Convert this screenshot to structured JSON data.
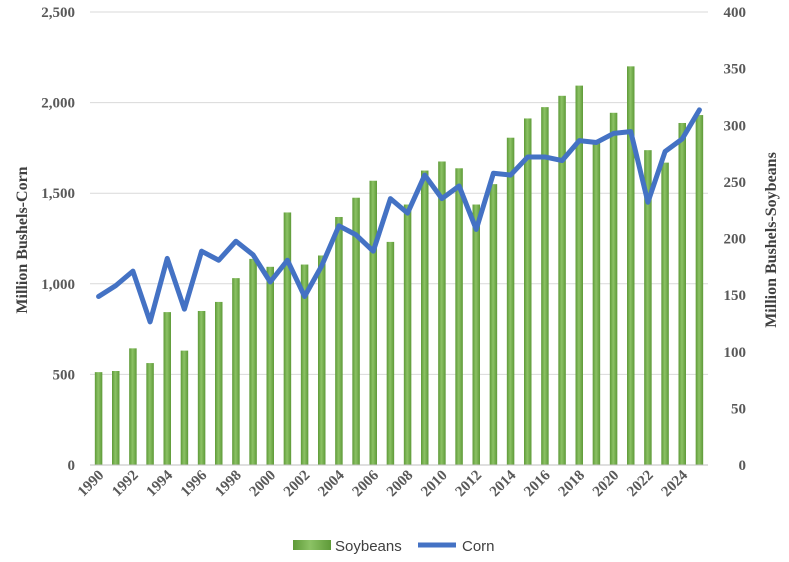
{
  "chart_data": {
    "type": "bar",
    "title": "",
    "categories": [
      "1990",
      "1991",
      "1992",
      "1993",
      "1994",
      "1995",
      "1996",
      "1997",
      "1998",
      "1999",
      "2000",
      "2001",
      "2002",
      "2003",
      "2004",
      "2005",
      "2006",
      "2007",
      "2008",
      "2009",
      "2010",
      "2011",
      "2012",
      "2013",
      "2014",
      "2015",
      "2016",
      "2017",
      "2018",
      "2019",
      "2020",
      "2021",
      "2022",
      "2023",
      "2024",
      "2025"
    ],
    "x_tick_labels": [
      "1990",
      "1992",
      "1994",
      "1996",
      "1998",
      "2000",
      "2002",
      "2004",
      "2006",
      "2008",
      "2010",
      "2012",
      "2014",
      "2016",
      "2018",
      "2020",
      "2022",
      "2024"
    ],
    "series": [
      {
        "name": "Soybeans",
        "type": "bar",
        "axis": "right",
        "color": "#70AD47",
        "values": [
          82,
          83,
          103,
          90,
          135,
          101,
          136,
          144,
          165,
          182,
          175,
          223,
          177,
          185,
          219,
          236,
          251,
          197,
          230,
          260,
          268,
          262,
          230,
          248,
          289,
          306,
          316,
          326,
          335,
          285,
          311,
          352,
          278,
          267,
          302,
          309
        ]
      },
      {
        "name": "Corn",
        "type": "line",
        "axis": "left",
        "color": "#4472C4",
        "values": [
          930,
          990,
          1070,
          790,
          1140,
          860,
          1180,
          1130,
          1235,
          1160,
          1010,
          1130,
          930,
          1100,
          1320,
          1270,
          1180,
          1470,
          1390,
          1600,
          1470,
          1540,
          1300,
          1610,
          1600,
          1700,
          1700,
          1680,
          1790,
          1780,
          1830,
          1840,
          1450,
          1730,
          1800,
          1960
        ]
      }
    ],
    "y_left": {
      "label": "Million Bushels-Corn",
      "ylim": [
        0,
        2500
      ],
      "ticks": [
        "0",
        "500",
        "1,000",
        "1,500",
        "2,000",
        "2,500"
      ],
      "tick_values": [
        0,
        500,
        1000,
        1500,
        2000,
        2500
      ]
    },
    "y_right": {
      "label": "Million Bushels-Soybeans",
      "ylim": [
        0,
        400
      ],
      "ticks": [
        "0",
        "50",
        "100",
        "150",
        "200",
        "250",
        "300",
        "350",
        "400"
      ],
      "tick_values": [
        0,
        50,
        100,
        150,
        200,
        250,
        300,
        350,
        400
      ]
    },
    "grid": true,
    "legend": {
      "position": "bottom",
      "entries": [
        "Soybeans",
        "Corn"
      ]
    }
  }
}
